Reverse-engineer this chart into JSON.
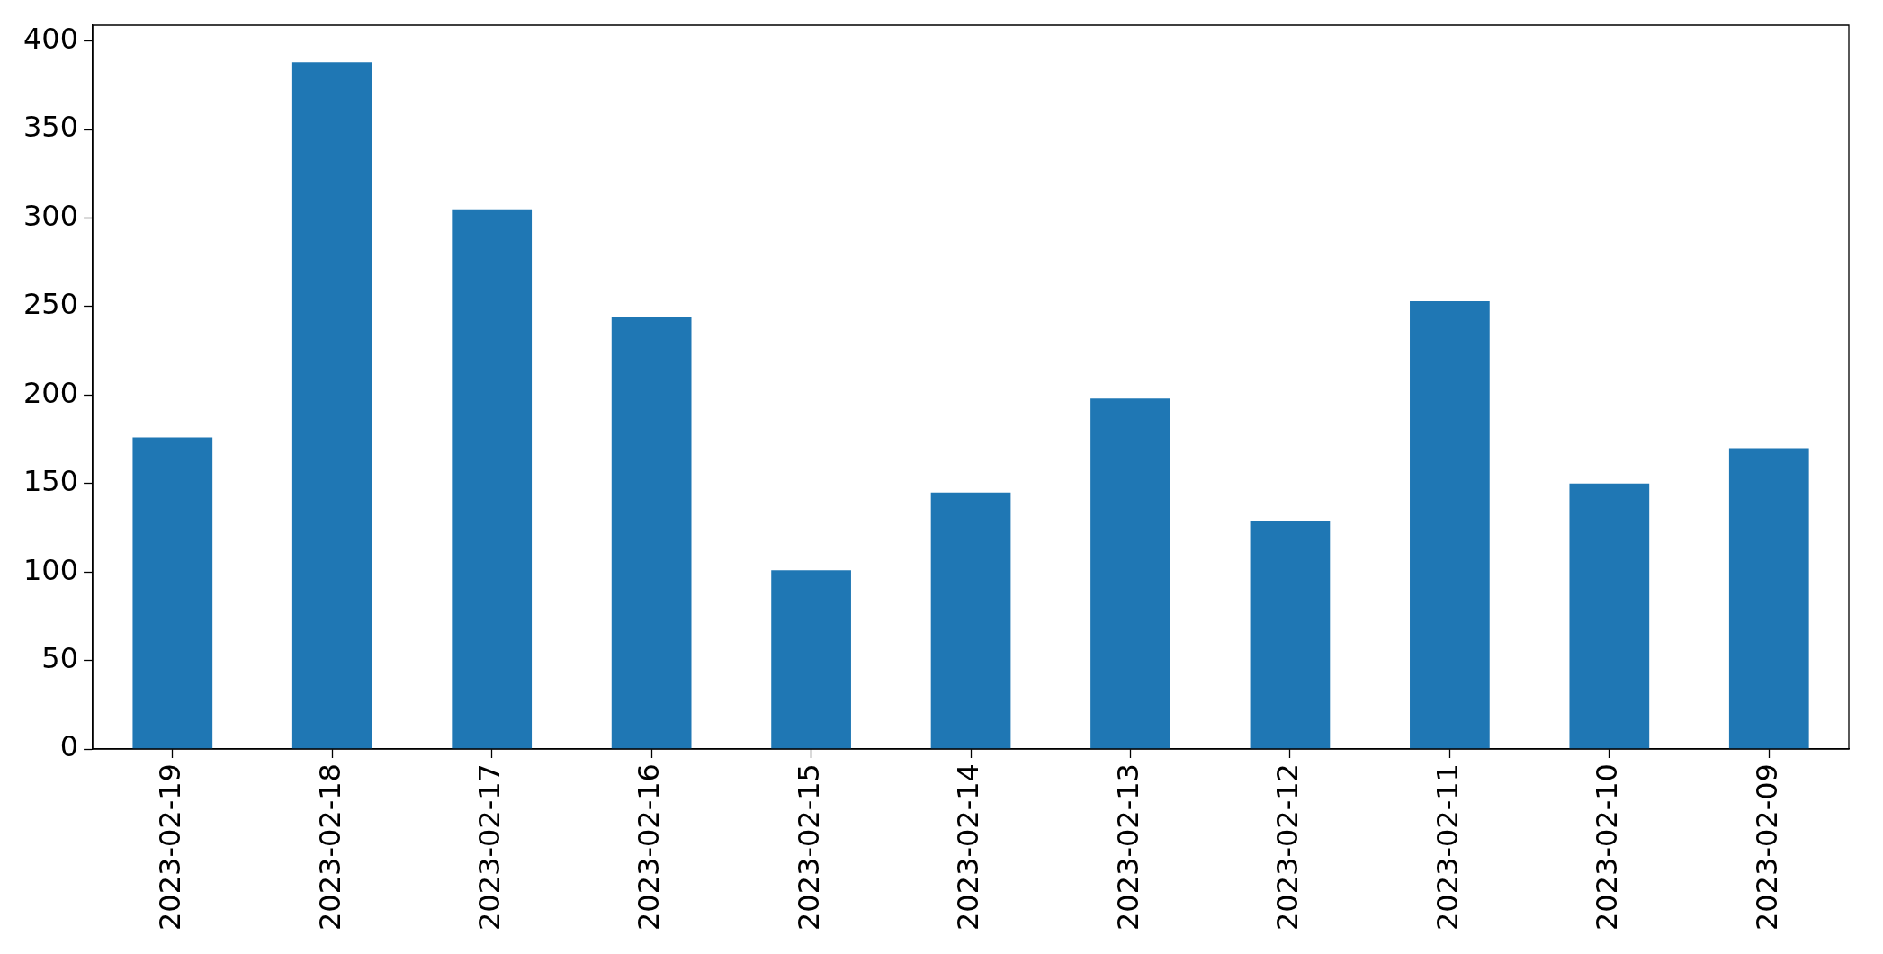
{
  "chart_data": {
    "type": "bar",
    "categories": [
      "2023-02-19",
      "2023-02-18",
      "2023-02-17",
      "2023-02-16",
      "2023-02-15",
      "2023-02-14",
      "2023-02-13",
      "2023-02-12",
      "2023-02-11",
      "2023-02-10",
      "2023-02-09"
    ],
    "values": [
      176,
      388,
      305,
      244,
      101,
      145,
      198,
      129,
      253,
      150,
      170
    ],
    "color": "#1f77b4",
    "ylim": [
      0,
      409
    ],
    "yticks": [
      0,
      50,
      100,
      150,
      200,
      250,
      300,
      350,
      400
    ]
  }
}
